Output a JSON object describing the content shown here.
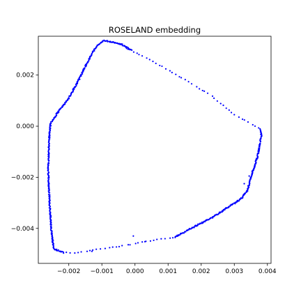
{
  "chart_data": {
    "type": "scatter",
    "title": "ROSELAND embedding",
    "xlabel": "",
    "ylabel": "",
    "xlim": [
      -0.00292,
      0.00411
    ],
    "ylim": [
      -0.00537,
      0.00352
    ],
    "xticks": [
      -0.002,
      -0.001,
      0.0,
      0.001,
      0.002,
      0.003,
      0.004
    ],
    "xtick_labels": [
      "−0.002",
      "−0.001",
      "0.000",
      "0.001",
      "0.002",
      "0.003",
      "0.004"
    ],
    "yticks": [
      -0.004,
      -0.002,
      0.0,
      0.002
    ],
    "ytick_labels": [
      "−0.004",
      "−0.002",
      "0.000",
      "0.002"
    ],
    "grid": false,
    "legend": "none",
    "marker_color": "#0000ff",
    "series": [
      {
        "shape": "closed-loop",
        "vertices": [
          [
            -0.00095,
            0.00335
          ],
          [
            -0.0007,
            0.0033
          ],
          [
            -0.0004,
            0.0032
          ],
          [
            -0.0001,
            0.00295
          ],
          [
            0.0003,
            0.0027
          ],
          [
            0.001,
            0.0022
          ],
          [
            0.0016,
            0.00175
          ],
          [
            0.0023,
            0.0012
          ],
          [
            0.003,
            0.00045
          ],
          [
            0.0035,
            0.0001
          ],
          [
            0.00378,
            -0.0001
          ],
          [
            0.00382,
            -0.0004
          ],
          [
            0.0037,
            -0.0012
          ],
          [
            0.00355,
            -0.0018
          ],
          [
            0.0034,
            -0.0025
          ],
          [
            0.0032,
            -0.00285
          ],
          [
            0.0029,
            -0.0031
          ],
          [
            0.0023,
            -0.0036
          ],
          [
            0.0017,
            -0.004
          ],
          [
            0.0012,
            -0.00435
          ],
          [
            0.0006,
            -0.00445
          ],
          [
            -0.0002,
            -0.00465
          ],
          [
            -0.001,
            -0.0048
          ],
          [
            -0.0018,
            -0.00495
          ],
          [
            -0.00215,
            -0.00495
          ],
          [
            -0.00245,
            -0.0048
          ],
          [
            -0.00252,
            -0.0042
          ],
          [
            -0.00258,
            -0.003
          ],
          [
            -0.00262,
            -0.0018
          ],
          [
            -0.0026,
            -0.0006
          ],
          [
            -0.00255,
            0.0001
          ],
          [
            -0.0023,
            0.0006
          ],
          [
            -0.002,
            0.0011
          ],
          [
            -0.0017,
            0.0018
          ],
          [
            -0.0014,
            0.0026
          ],
          [
            -0.0012,
            0.00305
          ],
          [
            -0.00105,
            0.00325
          ]
        ],
        "sparse_segments": [
          [
            3,
            10
          ],
          [
            19,
            24
          ]
        ],
        "outliers": [
          [
            -5e-05,
            -0.0043
          ],
          [
            0.0003,
            -0.00452
          ],
          [
            -0.0013,
            -0.0049
          ],
          [
            0.0033,
            -0.00225
          ],
          [
            0.00345,
            -0.00195
          ]
        ]
      }
    ]
  }
}
